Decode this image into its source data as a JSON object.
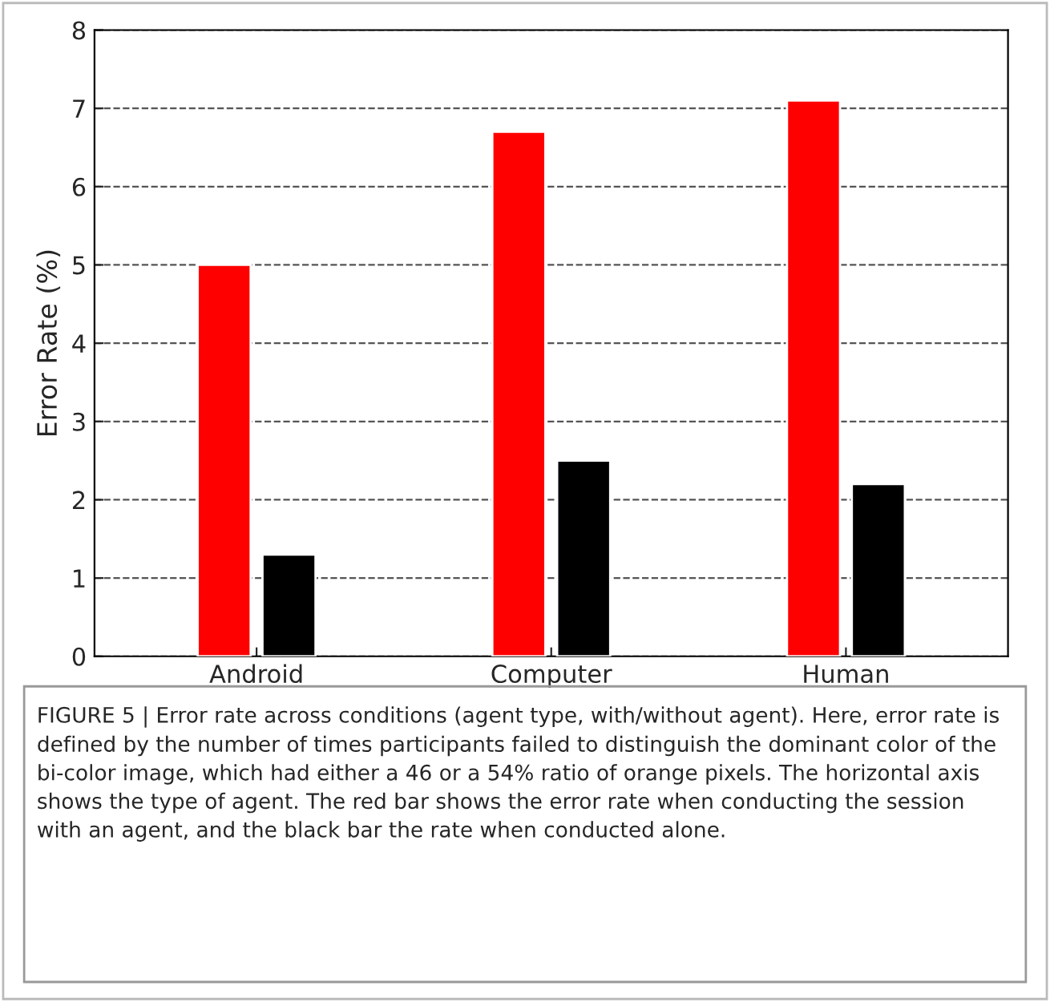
{
  "chart_data": {
    "type": "bar",
    "ylabel": "Error Rate (%)",
    "categories": [
      "Android",
      "Computer",
      "Human"
    ],
    "series": [
      {
        "color": "#ff0000",
        "values": [
          5.0,
          6.7,
          7.1
        ]
      },
      {
        "color": "#000000",
        "values": [
          1.3,
          2.5,
          2.2
        ]
      }
    ],
    "ylim": [
      0,
      8
    ],
    "yticks": [
      0,
      1,
      2,
      3,
      4,
      5,
      6,
      7,
      8
    ],
    "grid": "y",
    "annotations": [
      "FIGURE 5 | Error rate across conditions (agent type, with/without agent). Here, error rate is defined by the number of times participants failed to distinguish the dominant color of the bi-color image, which had either a 46 or a 54% ratio of orange pixels. The horizontal axis shows the type of agent. The red bar shows the error rate when conducting the session with an agent, and the black bar the rate when conducted alone."
    ]
  }
}
